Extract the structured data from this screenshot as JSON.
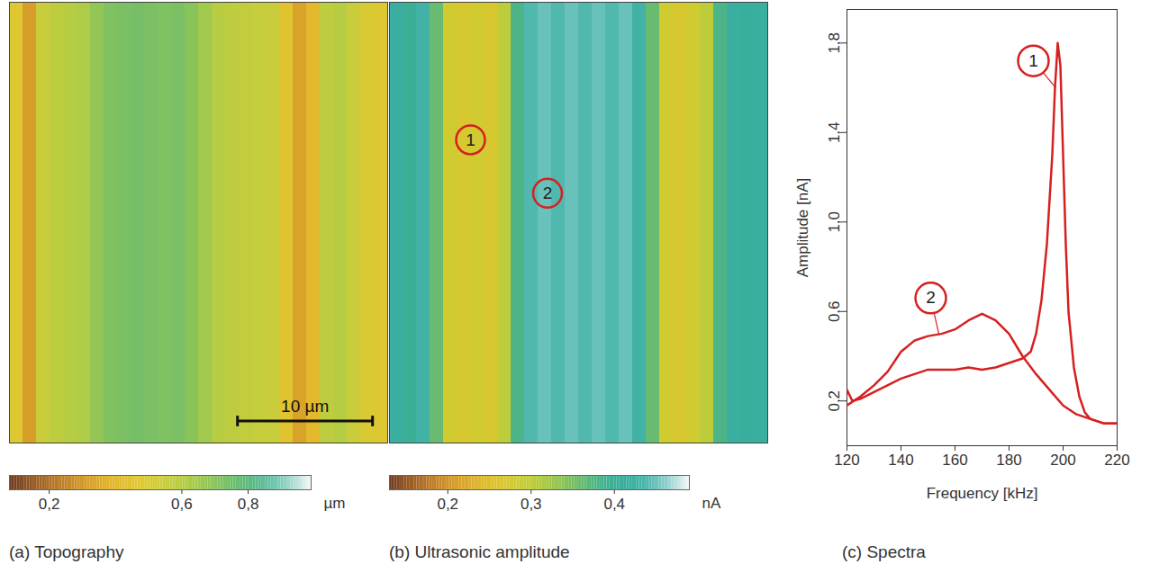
{
  "chart_data": [
    {
      "type": "heatmap",
      "title": "(a) Topography",
      "tick_labels": false,
      "xlim": [
        0,
        28
      ],
      "ylim": [
        0,
        33
      ],
      "bins": [
        0,
        1,
        2,
        3,
        4,
        5,
        6,
        7,
        8,
        9,
        10,
        11,
        12,
        13,
        14,
        15,
        16,
        17,
        18,
        19,
        20,
        21,
        22,
        23,
        24,
        25,
        26,
        27,
        28
      ],
      "values": [
        0.48,
        0.32,
        0.55,
        0.58,
        0.6,
        0.62,
        0.68,
        0.72,
        0.73,
        0.74,
        0.73,
        0.72,
        0.73,
        0.7,
        0.65,
        0.6,
        0.58,
        0.57,
        0.56,
        0.55,
        0.45,
        0.33,
        0.4,
        0.58,
        0.6,
        0.55,
        0.5,
        0.48
      ],
      "colorbar": {
        "range": [
          0.08,
          0.99
        ],
        "ticks": [
          {
            "value": 0.2,
            "label": "0,2"
          },
          {
            "value": 0.6,
            "label": "0,6"
          },
          {
            "value": 0.8,
            "label": "0,8"
          }
        ],
        "label": "µm"
      },
      "scale_bar": {
        "length": 10,
        "label": "10 µm"
      }
    },
    {
      "type": "heatmap",
      "title": "(b) Ultrasonic amplitude",
      "tick_labels": false,
      "xlim": [
        0,
        28
      ],
      "ylim": [
        0,
        33
      ],
      "bins": [
        0,
        1,
        2,
        3,
        4,
        5,
        6,
        7,
        8,
        9,
        10,
        11,
        12,
        13,
        14,
        15,
        16,
        17,
        18,
        19,
        20,
        21,
        22,
        23,
        24,
        25,
        26,
        27,
        28
      ],
      "values": [
        0.42,
        0.4,
        0.43,
        0.36,
        0.28,
        0.27,
        0.28,
        0.27,
        0.3,
        0.38,
        0.44,
        0.45,
        0.44,
        0.45,
        0.44,
        0.45,
        0.44,
        0.45,
        0.43,
        0.36,
        0.28,
        0.27,
        0.28,
        0.3,
        0.38,
        0.42,
        0.41,
        0.42
      ],
      "colorbar": {
        "range": [
          0.13,
          0.49
        ],
        "ticks": [
          {
            "value": 0.2,
            "label": "0,2"
          },
          {
            "value": 0.3,
            "label": "0,3"
          },
          {
            "value": 0.4,
            "label": "0,4"
          }
        ],
        "label": "nA"
      },
      "annotations": [
        {
          "label": "1",
          "x": 6,
          "y": 10.3
        },
        {
          "label": "2",
          "x": 11.7,
          "y": 14.3
        }
      ]
    },
    {
      "type": "line",
      "title": "(c) Spectra",
      "x_label": "Frequency [kHz]",
      "y_label": "Amplitude [nA]",
      "grid": false,
      "xlim": [
        120,
        220
      ],
      "ylim": [
        0,
        1.95
      ],
      "xticks": [
        120,
        140,
        160,
        180,
        200,
        220
      ],
      "yticks": [
        {
          "value": 0.2,
          "label": "0,2"
        },
        {
          "value": 0.6,
          "label": "0,6"
        },
        {
          "value": 1.0,
          "label": "1,0"
        },
        {
          "value": 1.4,
          "label": "1,4"
        },
        {
          "value": 1.8,
          "label": "1,8"
        }
      ],
      "series": [
        {
          "name": "1",
          "color": "#d62020",
          "x": [
            120,
            122,
            125,
            130,
            135,
            140,
            145,
            150,
            155,
            160,
            165,
            170,
            175,
            180,
            185,
            188,
            190,
            192,
            194,
            196,
            197,
            198,
            199,
            200,
            201,
            202,
            204,
            206,
            208,
            210,
            215,
            220
          ],
          "values": [
            0.25,
            0.2,
            0.21,
            0.24,
            0.27,
            0.3,
            0.32,
            0.34,
            0.34,
            0.34,
            0.35,
            0.34,
            0.35,
            0.37,
            0.39,
            0.42,
            0.5,
            0.65,
            0.9,
            1.3,
            1.6,
            1.8,
            1.7,
            1.3,
            0.9,
            0.6,
            0.35,
            0.22,
            0.15,
            0.12,
            0.1,
            0.1
          ],
          "annotation": {
            "x": 189,
            "y": 1.72,
            "target_x": 197.3,
            "target_y": 1.6
          }
        },
        {
          "name": "2",
          "color": "#d62020",
          "x": [
            120,
            125,
            130,
            135,
            140,
            145,
            150,
            155,
            160,
            165,
            170,
            175,
            180,
            185,
            190,
            195,
            200,
            205,
            210,
            215,
            220
          ],
          "values": [
            0.18,
            0.22,
            0.27,
            0.33,
            0.42,
            0.47,
            0.49,
            0.5,
            0.52,
            0.56,
            0.59,
            0.56,
            0.5,
            0.4,
            0.32,
            0.25,
            0.18,
            0.14,
            0.12,
            0.1,
            0.1
          ],
          "annotation": {
            "x": 151,
            "y": 0.66,
            "target_x": 154,
            "target_y": 0.5
          }
        }
      ]
    }
  ]
}
